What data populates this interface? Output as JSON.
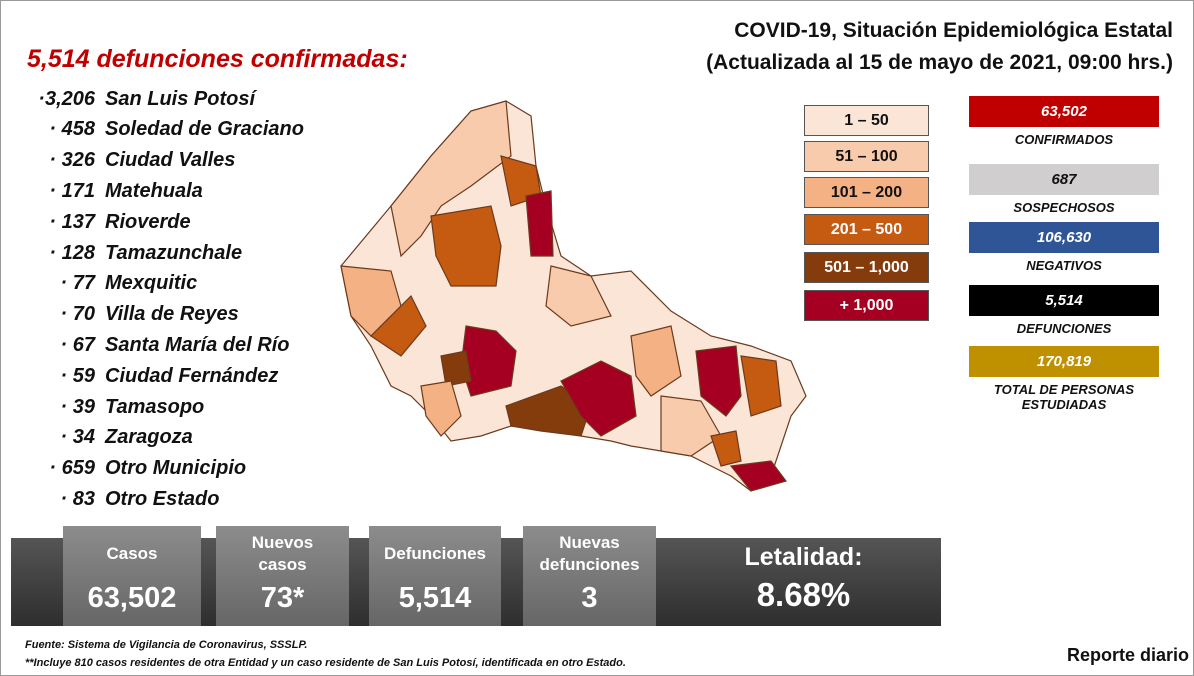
{
  "header": {
    "title_line1": "COVID-19, Situación Epidemiológica Estatal",
    "title_line2": "(Actualizada al 15 de mayo de 2021, 09:00 hrs.)"
  },
  "deaths_heading": "5,514 defunciones confirmadas:",
  "deaths_list": [
    {
      "value": "·3,206",
      "place": "San Luis Potosí"
    },
    {
      "value": "· 458",
      "place": "Soledad de Graciano"
    },
    {
      "value": "· 326",
      "place": "Ciudad Valles"
    },
    {
      "value": "· 171",
      "place": "Matehuala"
    },
    {
      "value": "· 137",
      "place": "Rioverde"
    },
    {
      "value": "· 128",
      "place": "Tamazunchale"
    },
    {
      "value": "· 77",
      "place": "Mexquitic"
    },
    {
      "value": "· 70",
      "place": "Villa de Reyes"
    },
    {
      "value": "· 67",
      "place": "Santa María del Río"
    },
    {
      "value": "· 59",
      "place": "Ciudad Fernández"
    },
    {
      "value": "· 39",
      "place": "Tamasopo"
    },
    {
      "value": "· 34",
      "place": "Zaragoza"
    },
    {
      "value": "· 659",
      "place": "Otro Municipio"
    },
    {
      "value": "· 83",
      "place": "Otro Estado"
    }
  ],
  "legend": [
    {
      "label": "1 – 50",
      "color": "#fbe5d6",
      "text_color": "#111111"
    },
    {
      "label": "51 – 100",
      "color": "#f8cbad",
      "text_color": "#111111"
    },
    {
      "label": "101 – 200",
      "color": "#f4b183",
      "text_color": "#111111"
    },
    {
      "label": "201 – 500",
      "color": "#c55a11",
      "text_color": "#ffffff"
    },
    {
      "label": "501 – 1,000",
      "color": "#843c0c",
      "text_color": "#ffffff"
    },
    {
      "label": "+ 1,000",
      "color": "#a50021",
      "text_color": "#ffffff"
    }
  ],
  "stats": [
    {
      "value": "63,502",
      "label": "CONFIRMADOS",
      "color": "#c00000",
      "text_color": "#ffffff"
    },
    {
      "value": "687",
      "label": "SOSPECHOSOS",
      "color": "#d0cece",
      "text_color": "#111111"
    },
    {
      "value": "106,630",
      "label": "NEGATIVOS",
      "color": "#2f5597",
      "text_color": "#ffffff"
    },
    {
      "value": "5,514",
      "label": "DEFUNCIONES",
      "color": "#000000",
      "text_color": "#ffffff"
    },
    {
      "value": "170,819",
      "label": "TOTAL DE PERSONAS ESTUDIADAS",
      "color": "#bf9000",
      "text_color": "#ffffff"
    }
  ],
  "summary": [
    {
      "label": "Casos",
      "value": "63,502"
    },
    {
      "label": "Nuevos casos",
      "value": "73*"
    },
    {
      "label": "Defunciones",
      "value": "5,514"
    },
    {
      "label": "Nuevas defunciones",
      "value": "3"
    },
    {
      "label": "Letalidad:",
      "value": "8.68%"
    }
  ],
  "footer": {
    "source": "Fuente: Sistema de Vigilancia de Coronavirus, SSSLP.",
    "note": "**Incluye 810 casos residentes de otra Entidad y un caso residente de San Luis Potosí, identificada en otro Estado.",
    "report": "Reporte diario"
  }
}
